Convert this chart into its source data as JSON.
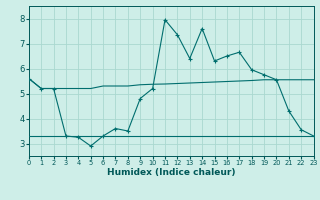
{
  "xlabel": "Humidex (Indice chaleur)",
  "xlim": [
    0,
    23
  ],
  "ylim": [
    2.5,
    8.5
  ],
  "yticks": [
    3,
    4,
    5,
    6,
    7,
    8
  ],
  "xticks": [
    0,
    1,
    2,
    3,
    4,
    5,
    6,
    7,
    8,
    9,
    10,
    11,
    12,
    13,
    14,
    15,
    16,
    17,
    18,
    19,
    20,
    21,
    22,
    23
  ],
  "background_color": "#ceeee8",
  "line_color": "#006e6e",
  "line1_x": [
    0,
    1,
    2,
    3,
    4,
    5,
    6,
    7,
    8,
    9,
    10,
    11,
    12,
    13,
    14,
    15,
    16,
    17,
    18,
    19,
    20,
    21,
    22,
    23
  ],
  "line1_y": [
    5.6,
    5.2,
    5.2,
    5.2,
    5.2,
    5.2,
    5.3,
    5.3,
    5.3,
    5.35,
    5.37,
    5.38,
    5.4,
    5.42,
    5.44,
    5.46,
    5.48,
    5.5,
    5.52,
    5.55,
    5.55,
    5.55,
    5.55,
    5.55
  ],
  "line2_x": [
    0,
    1,
    2,
    3,
    4,
    5,
    6,
    7,
    8,
    9,
    10,
    11,
    12,
    13,
    14,
    15,
    16,
    17,
    18,
    19,
    20,
    21,
    22,
    23
  ],
  "line2_y": [
    5.6,
    5.2,
    5.2,
    3.3,
    3.25,
    2.9,
    3.3,
    3.6,
    3.5,
    4.8,
    5.2,
    7.95,
    7.35,
    6.4,
    7.6,
    6.3,
    6.5,
    6.65,
    5.95,
    5.75,
    5.55,
    4.3,
    3.55,
    3.3
  ],
  "line3_x": [
    0,
    1,
    2,
    3,
    4,
    5,
    6,
    7,
    8,
    9,
    10,
    11,
    12,
    13,
    14,
    15,
    16,
    17,
    18,
    19,
    20,
    21,
    22,
    23
  ],
  "line3_y": [
    3.3,
    3.3,
    3.3,
    3.3,
    3.3,
    3.3,
    3.3,
    3.3,
    3.3,
    3.3,
    3.3,
    3.3,
    3.3,
    3.3,
    3.3,
    3.3,
    3.3,
    3.3,
    3.3,
    3.3,
    3.3,
    3.3,
    3.3,
    3.3
  ],
  "grid_color": "#aad8d0",
  "font_color": "#005858"
}
